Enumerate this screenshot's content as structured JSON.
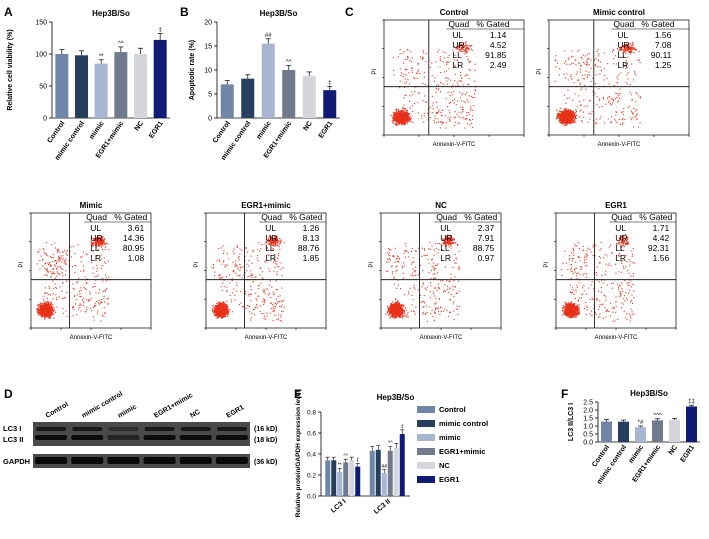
{
  "panel_letters": [
    "A",
    "B",
    "C",
    "D",
    "E",
    "F"
  ],
  "colors": {
    "series": [
      "#7086a6",
      "#263f5e",
      "#a9b6d1",
      "#707a8c",
      "#d4d6db",
      "#101b75"
    ],
    "dots": "#e8321b"
  },
  "chart_data": [
    {
      "id": "A",
      "type": "bar",
      "title": "Hep3B/So",
      "ylabel": "Relative cell viability (%)",
      "categories": [
        "Control",
        "mimic control",
        "mimic",
        "EGR1+mimic",
        "NC",
        "EGR1"
      ],
      "values": [
        100,
        98,
        85,
        103,
        100,
        122
      ],
      "errors": [
        7,
        7,
        6,
        8,
        9,
        10
      ],
      "marks": [
        "",
        "",
        "**",
        "^^",
        "",
        "‡"
      ],
      "ylim": [
        0,
        150
      ],
      "yticks": [
        "0",
        "50",
        "100",
        "150"
      ]
    },
    {
      "id": "B",
      "type": "bar",
      "title": "Hep3B/So",
      "ylabel": "Apoptotic rate (%)",
      "categories": [
        "Control",
        "mimic control",
        "mimic",
        "EGR1+mimic",
        "NC",
        "EGR1"
      ],
      "values": [
        7,
        8.2,
        15.5,
        10,
        8.8,
        5.8
      ],
      "errors": [
        0.8,
        0.8,
        1.0,
        0.9,
        0.8,
        0.8
      ],
      "marks": [
        "",
        "",
        "##",
        "^^",
        "",
        "‡"
      ],
      "ylim": [
        0,
        20
      ],
      "yticks": [
        "0",
        "5",
        "10",
        "15",
        "20"
      ]
    },
    {
      "id": "C",
      "type": "scatter",
      "subtype": "flow cytometry",
      "xlabel": "Annexin-V-FITC",
      "ylabel": "PI",
      "header": [
        "Quad",
        "% Gated"
      ],
      "quad_labels": [
        "UL",
        "UR",
        "LL",
        "LR"
      ],
      "plots": [
        {
          "title": "Control",
          "values": [
            "1.14",
            "4.52",
            "91.85",
            "2.49"
          ]
        },
        {
          "title": "Mimic control",
          "values": [
            "1.56",
            "7.08",
            "90.11",
            "1.25"
          ]
        },
        {
          "title": "Mimic",
          "values": [
            "3.61",
            "14.36",
            "80.95",
            "1.08"
          ]
        },
        {
          "title": "EGR1+mimic",
          "values": [
            "1.26",
            "8.13",
            "88.76",
            "1.85"
          ]
        },
        {
          "title": "NC",
          "values": [
            "2.37",
            "7.91",
            "88.75",
            "0.97"
          ]
        },
        {
          "title": "EGR1",
          "values": [
            "1.71",
            "4.42",
            "92.31",
            "1.56"
          ]
        }
      ]
    },
    {
      "id": "D",
      "type": "blot",
      "lanes": [
        "Control",
        "mimic control",
        "mimic",
        "EGR1+mimic",
        "NC",
        "EGR1"
      ],
      "rows": [
        {
          "label": "LC3 I",
          "kd": "(16 kD)"
        },
        {
          "label": "LC3 II",
          "kd": "(18 kD)"
        },
        {
          "label": "GAPDH",
          "kd": "(36 kD)"
        }
      ]
    },
    {
      "id": "E",
      "type": "bar",
      "title": "Hep3B/So",
      "ylabel": "Relative protein/GAPDH expression level",
      "categories": [
        "LC3 I",
        "LC3 II"
      ],
      "series": [
        {
          "name": "Control",
          "values": [
            0.34,
            0.43
          ],
          "errors": [
            0.03,
            0.04
          ],
          "marks": [
            "",
            ""
          ]
        },
        {
          "name": "mimic control",
          "values": [
            0.34,
            0.44
          ],
          "errors": [
            0.03,
            0.04
          ],
          "marks": [
            "",
            ""
          ]
        },
        {
          "name": "mimic",
          "values": [
            0.23,
            0.22
          ],
          "errors": [
            0.03,
            0.03
          ],
          "marks": [
            "**",
            "##"
          ]
        },
        {
          "name": "EGR1+mimic",
          "values": [
            0.32,
            0.43
          ],
          "errors": [
            0.03,
            0.04
          ],
          "marks": [
            "^^",
            "^^"
          ]
        },
        {
          "name": "NC",
          "values": [
            0.34,
            0.46
          ],
          "errors": [
            0.03,
            0.04
          ],
          "marks": [
            "",
            ""
          ]
        },
        {
          "name": "EGR1",
          "values": [
            0.28,
            0.59
          ],
          "errors": [
            0.03,
            0.04
          ],
          "marks": [
            "‡",
            "‡"
          ]
        }
      ],
      "ylim": [
        0,
        0.8
      ],
      "yticks": [
        "0.0",
        "0.2",
        "0.4",
        "0.6",
        "0.8"
      ]
    },
    {
      "id": "F",
      "type": "bar",
      "title": "Hep3B/So",
      "ylabel": "LC3 II/LC3 I",
      "categories": [
        "Control",
        "mimic control",
        "mimic",
        "EGR1+mimic",
        "NC",
        "EGR1"
      ],
      "values": [
        1.28,
        1.27,
        0.93,
        1.35,
        1.38,
        2.22
      ],
      "errors": [
        0.12,
        0.1,
        0.07,
        0.1,
        0.1,
        0.08
      ],
      "marks": [
        "",
        "",
        "*#",
        "^^^",
        "",
        "‡‡"
      ],
      "ylim": [
        0,
        2.5
      ],
      "yticks": [
        "0.0",
        "0.5",
        "1.0",
        "1.5",
        "2.0",
        "2.5"
      ]
    }
  ]
}
